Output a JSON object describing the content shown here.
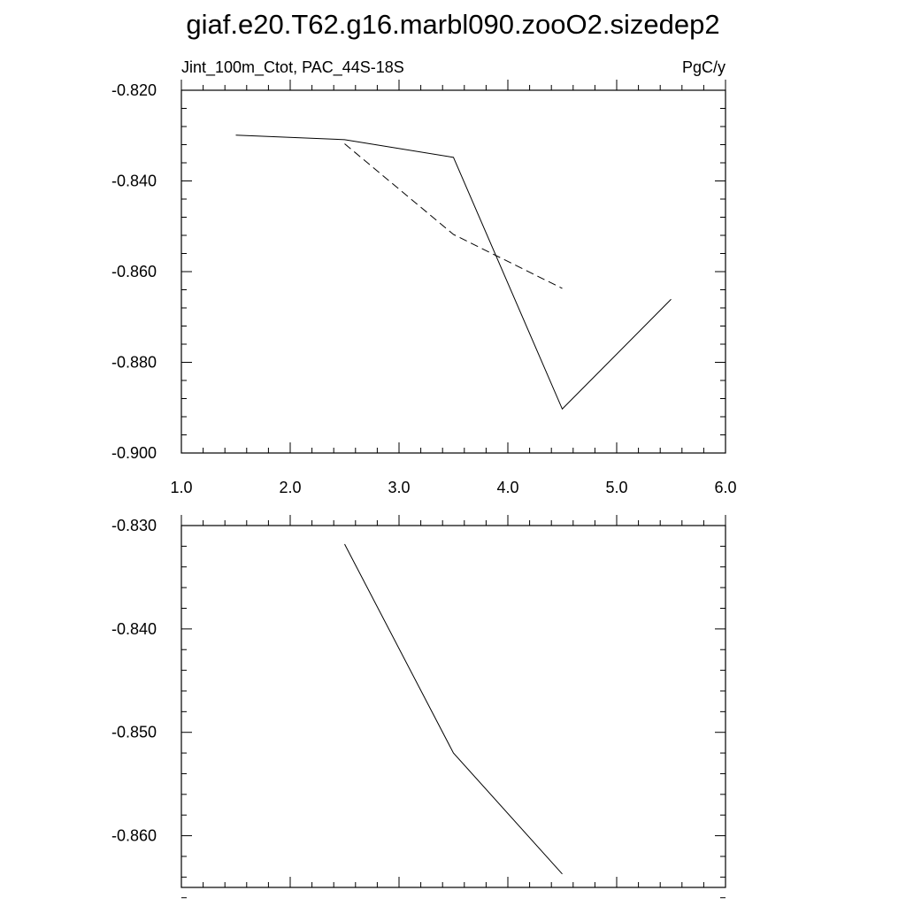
{
  "title": "giaf.e20.T62.g16.marbl090.zooO2.sizedep2",
  "chart_data": [
    {
      "type": "line",
      "left_label": "Jint_100m_Ctot, PAC_44S-18S",
      "right_label": "PgC/y",
      "xlim": [
        1.0,
        6.0
      ],
      "ylim": [
        -0.9,
        -0.82
      ],
      "xticks": [
        1.0,
        2.0,
        3.0,
        4.0,
        5.0,
        6.0
      ],
      "xtick_labels": [
        "1.0",
        "2.0",
        "3.0",
        "4.0",
        "5.0",
        "6.0"
      ],
      "yticks": [
        -0.82,
        -0.84,
        -0.86,
        -0.88,
        -0.9
      ],
      "ytick_labels": [
        "-0.820",
        "-0.840",
        "-0.860",
        "-0.880",
        "-0.900"
      ],
      "grid": false,
      "series": [
        {
          "style": "solid",
          "color": "#000000",
          "x": [
            1.5,
            2.5,
            3.5,
            4.5,
            5.5
          ],
          "y": [
            -0.8299,
            -0.8309,
            -0.8348,
            -0.8903,
            -0.8661
          ]
        },
        {
          "style": "dashed",
          "color": "#000000",
          "x": [
            2.5,
            3.5,
            4.5
          ],
          "y": [
            -0.8318,
            -0.8518,
            -0.8637
          ]
        }
      ]
    },
    {
      "type": "line",
      "xlim": [
        1.0,
        6.0
      ],
      "ylim": [
        -0.865,
        -0.83
      ],
      "xticks": [
        1.0,
        2.0,
        3.0,
        4.0,
        5.0,
        6.0
      ],
      "yticks": [
        -0.83,
        -0.84,
        -0.85,
        -0.86
      ],
      "ytick_labels": [
        "-0.830",
        "-0.840",
        "-0.850",
        "-0.860"
      ],
      "grid": false,
      "series": [
        {
          "style": "solid",
          "color": "#000000",
          "x": [
            2.5,
            3.5,
            4.5
          ],
          "y": [
            -0.8318,
            -0.852,
            -0.8637
          ]
        }
      ]
    }
  ]
}
